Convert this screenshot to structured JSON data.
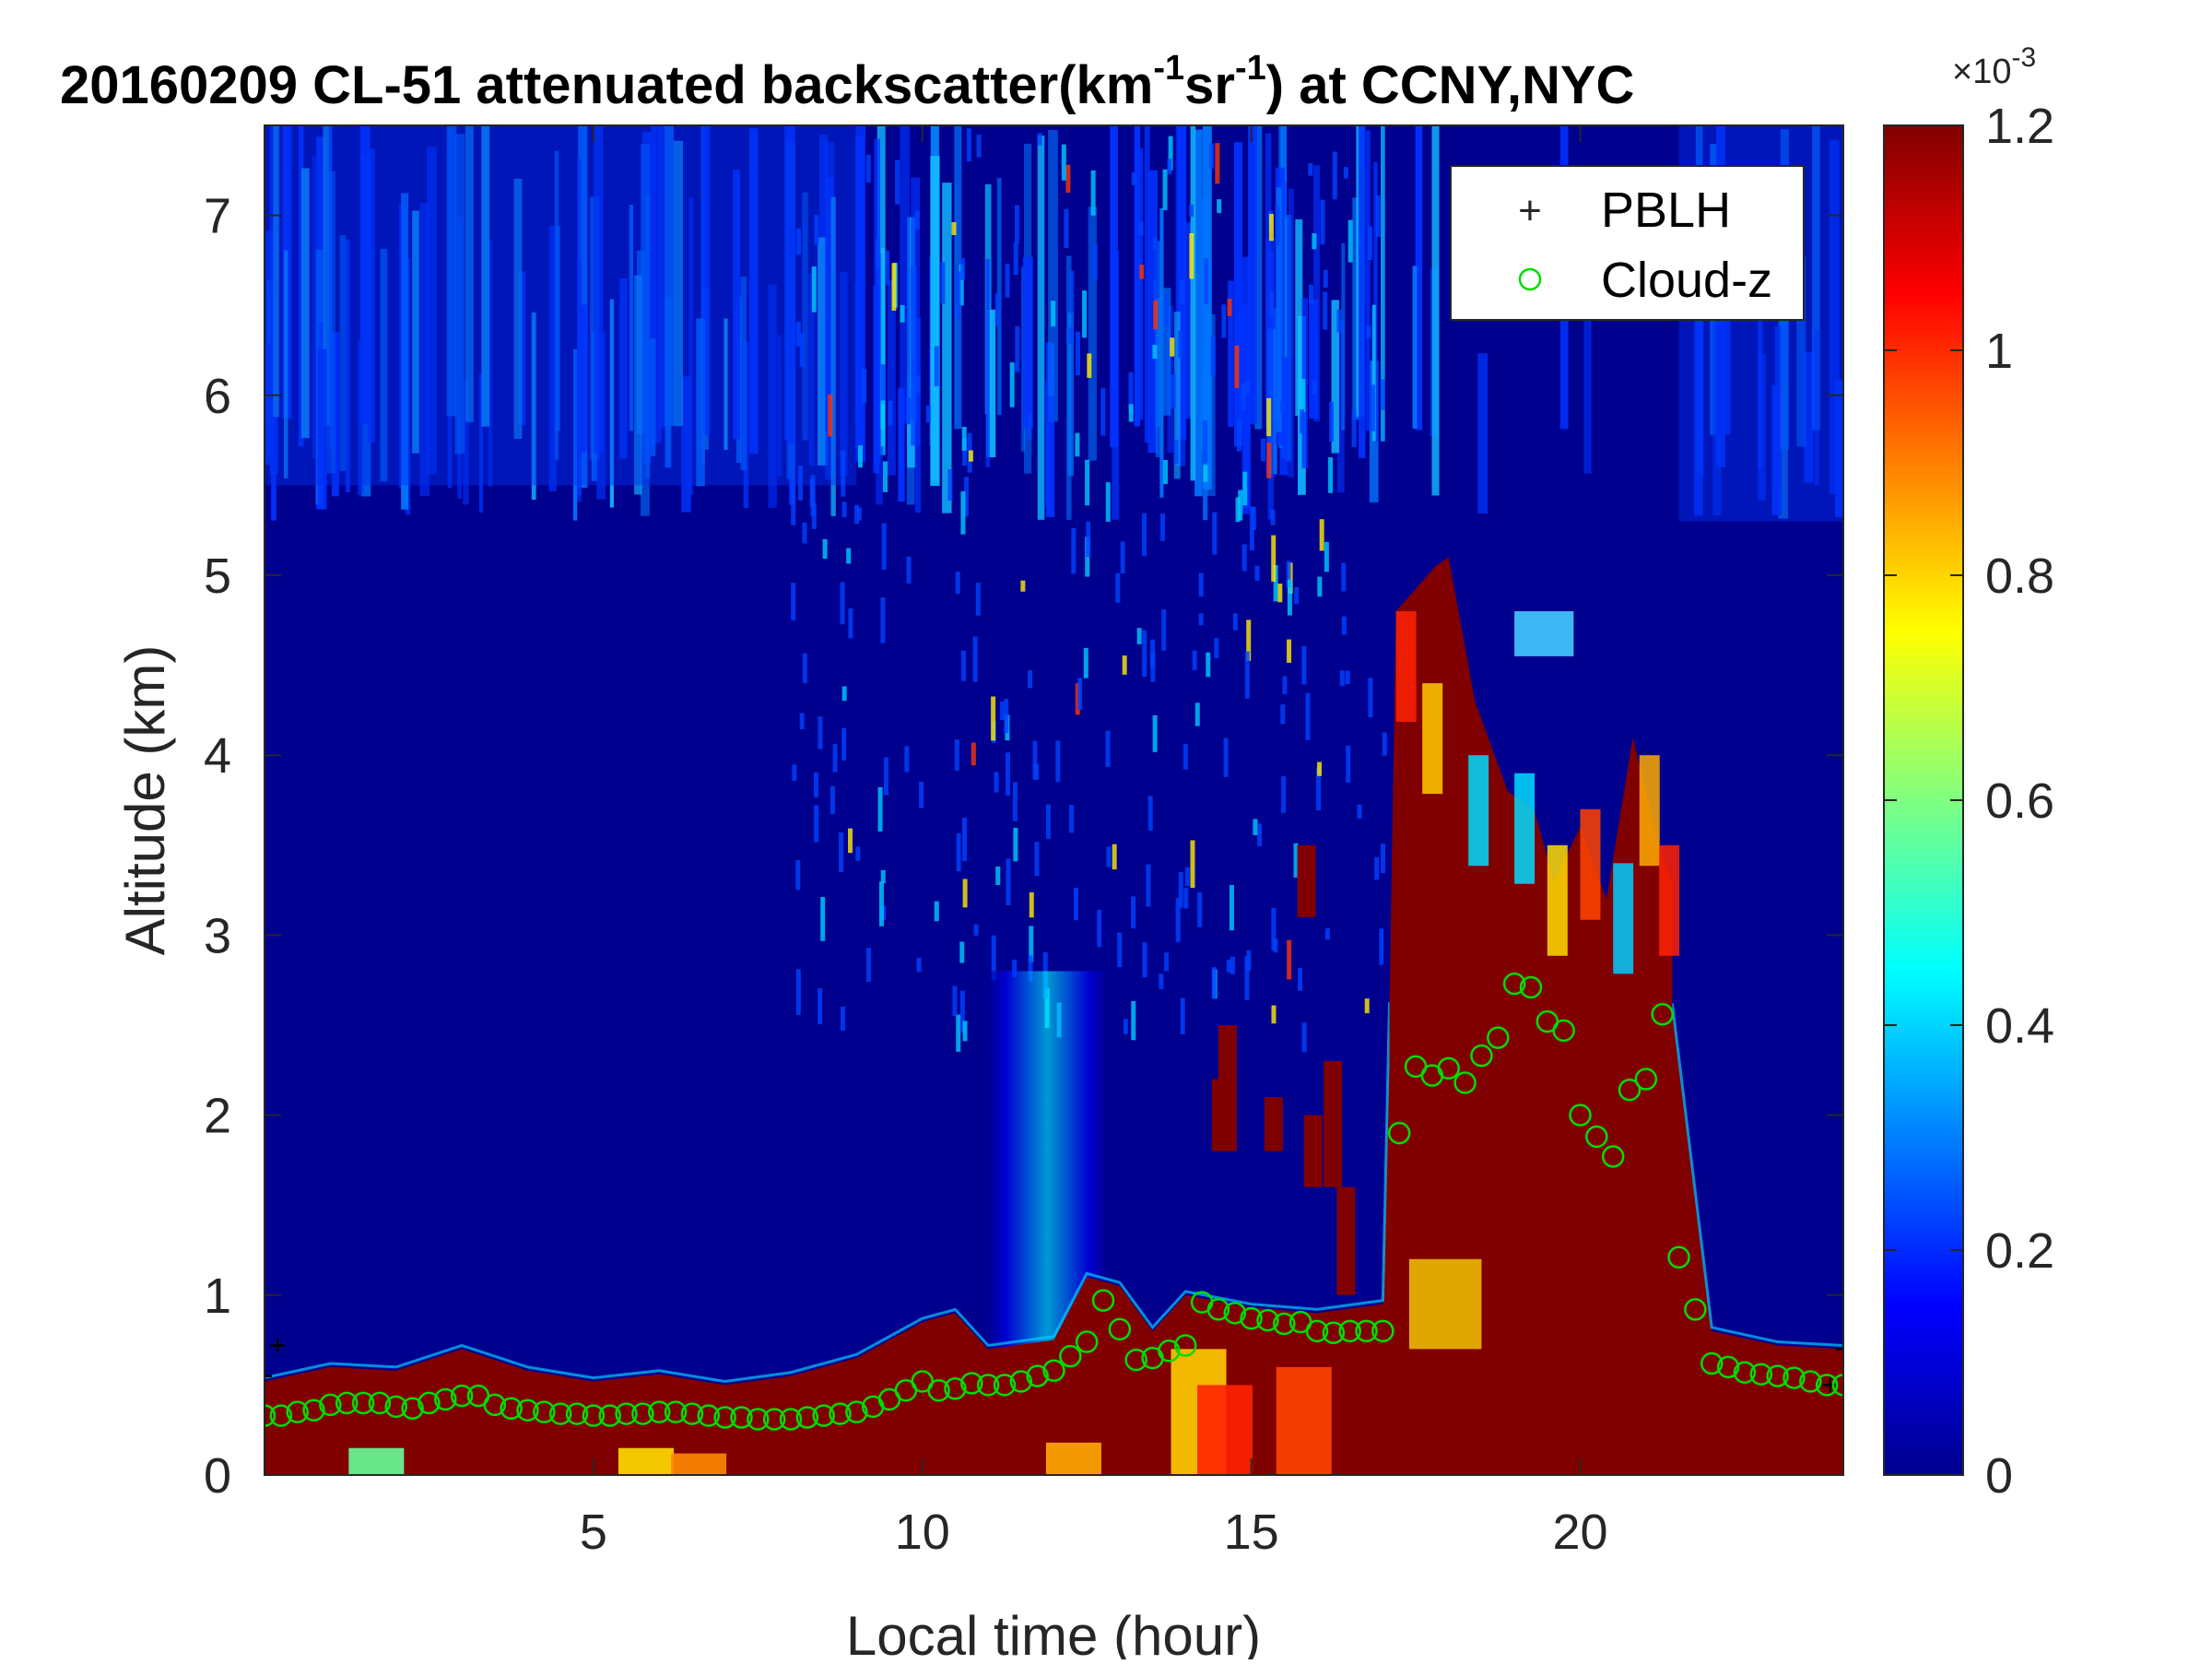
{
  "chart_data": {
    "type": "heatmap",
    "title": {
      "main": "20160209  CL-51 attenuated backscatter(km",
      "sup1": "-1",
      "mid": "sr",
      "sup2": "-1",
      "end": ") at CCNY,NYC"
    },
    "xlabel": "Local time (hour)",
    "ylabel": "Altitude (km)",
    "xlim": [
      0,
      24
    ],
    "ylim": [
      0,
      7.5
    ],
    "xticks": [
      5,
      10,
      15,
      20
    ],
    "xtick_labels": [
      "5",
      "10",
      "15",
      "20"
    ],
    "yticks": [
      0,
      1,
      2,
      3,
      4,
      5,
      6,
      7
    ],
    "ytick_labels": [
      "0",
      "1",
      "2",
      "3",
      "4",
      "5",
      "6",
      "7"
    ],
    "colorbar": {
      "colormap": "jet",
      "range": [
        0,
        0.0012
      ],
      "ticks": [
        0,
        0.2,
        0.4,
        0.6,
        0.8,
        1.0,
        1.2
      ],
      "tick_labels": [
        "0",
        "0.2",
        "0.4",
        "0.6",
        "0.8",
        "1",
        "1.2"
      ],
      "exponent_base": "×10",
      "exponent_power": "-3"
    },
    "legend": {
      "position": "top-right",
      "entries": [
        {
          "label": "PBLH",
          "marker": "+",
          "color": "#000000"
        },
        {
          "label": "Cloud-z",
          "marker": "o",
          "color": "#00dd00"
        }
      ]
    },
    "series": [
      {
        "name": "PBLH",
        "marker": "+",
        "color": "#000000",
        "x": [
          0.0,
          0.2,
          23.8,
          24.0
        ],
        "y": [
          0.55,
          0.72,
          0.5,
          0.7
        ]
      },
      {
        "name": "Cloud-z",
        "marker": "o",
        "color": "#00dd00",
        "x": [
          0.0,
          0.25,
          0.5,
          0.75,
          1.0,
          1.25,
          1.5,
          1.75,
          2.0,
          2.25,
          2.5,
          2.75,
          3.0,
          3.25,
          3.5,
          3.75,
          4.0,
          4.25,
          4.5,
          4.75,
          5.0,
          5.25,
          5.5,
          5.75,
          6.0,
          6.25,
          6.5,
          6.75,
          7.0,
          7.25,
          7.5,
          7.75,
          8.0,
          8.25,
          8.5,
          8.75,
          9.0,
          9.25,
          9.5,
          9.75,
          10.0,
          10.25,
          10.5,
          10.75,
          11.0,
          11.25,
          11.5,
          11.75,
          12.0,
          12.25,
          12.5,
          12.75,
          13.0,
          13.25,
          13.5,
          13.75,
          14.0,
          14.25,
          14.5,
          14.75,
          15.0,
          15.25,
          15.5,
          15.75,
          16.0,
          16.25,
          16.5,
          16.75,
          17.0,
          17.25,
          17.5,
          17.75,
          18.0,
          18.25,
          18.5,
          18.75,
          19.0,
          19.25,
          19.5,
          19.75,
          20.0,
          20.25,
          20.5,
          20.75,
          21.0,
          21.25,
          21.5,
          21.75,
          22.0,
          22.25,
          22.5,
          22.75,
          23.0,
          23.25,
          23.5,
          23.75,
          24.0
        ],
        "y": [
          0.33,
          0.33,
          0.35,
          0.36,
          0.39,
          0.4,
          0.4,
          0.4,
          0.38,
          0.37,
          0.4,
          0.42,
          0.44,
          0.44,
          0.39,
          0.37,
          0.36,
          0.35,
          0.34,
          0.34,
          0.33,
          0.33,
          0.34,
          0.34,
          0.35,
          0.35,
          0.34,
          0.33,
          0.32,
          0.32,
          0.31,
          0.31,
          0.31,
          0.32,
          0.33,
          0.34,
          0.35,
          0.38,
          0.42,
          0.47,
          0.52,
          0.47,
          0.48,
          0.51,
          0.5,
          0.5,
          0.52,
          0.55,
          0.58,
          0.66,
          0.74,
          0.97,
          0.81,
          0.64,
          0.65,
          0.69,
          0.72,
          0.96,
          0.92,
          0.9,
          0.87,
          0.86,
          0.84,
          0.85,
          0.8,
          0.79,
          0.8,
          0.8,
          0.8,
          1.9,
          2.27,
          2.22,
          2.26,
          2.18,
          2.33,
          2.43,
          2.73,
          2.71,
          2.52,
          2.47,
          2.0,
          1.88,
          1.77,
          2.14,
          2.2,
          2.56,
          1.21,
          0.92,
          0.62,
          0.6,
          0.57,
          0.56,
          0.55,
          0.54,
          0.52,
          0.5,
          0.5
        ]
      }
    ],
    "features": [
      {
        "name": "boundary-layer-aerosol",
        "x_range": [
          0,
          24
        ],
        "top_km": [
          0.5,
          0.65,
          0.58,
          0.7,
          0.55,
          0.5,
          0.52,
          0.6,
          0.85,
          0.9,
          1.1,
          0.95,
          1.0,
          0.9,
          0.85,
          1.0,
          2.6,
          2.6,
          1.8,
          0.75,
          0.7,
          0.68
        ]
      },
      {
        "name": "evening-cloud",
        "x_range": [
          17.1,
          21.4
        ],
        "top_km": 5.0
      },
      {
        "name": "upper-aerosol-layer",
        "altitude_range_km": [
          5.5,
          7.5
        ]
      }
    ]
  }
}
